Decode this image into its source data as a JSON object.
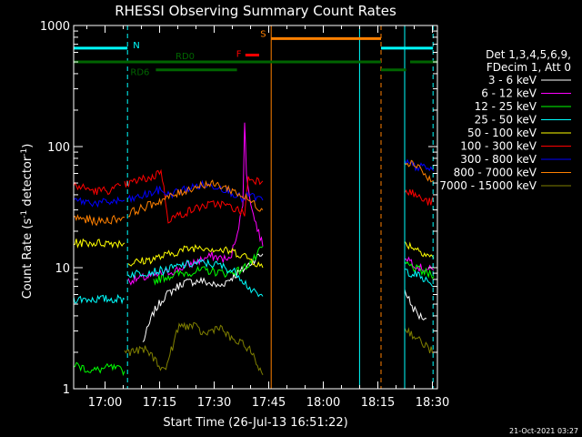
{
  "chart_data": {
    "type": "line",
    "title": "RHESSI Observing Summary Count Rates",
    "xlabel": "Start Time (26-Jul-13 16:51:22)",
    "ylabel_main": "Count Rate (s",
    "ylabel_sup1": "-1",
    "ylabel_mid": " detector",
    "ylabel_sup2": "-1",
    "ylabel_end": ")",
    "x_unit": "minutes after 16:51:22",
    "xlim": [
      0,
      100
    ],
    "ylim": [
      1,
      1000
    ],
    "yscale": "log",
    "x_ticks": [
      {
        "v": 8.63,
        "label": "17:00"
      },
      {
        "v": 23.63,
        "label": "17:15"
      },
      {
        "v": 38.63,
        "label": "17:30"
      },
      {
        "v": 53.63,
        "label": "17:45"
      },
      {
        "v": 68.63,
        "label": "18:00"
      },
      {
        "v": 83.63,
        "label": "18:15"
      },
      {
        "v": 98.63,
        "label": "18:30"
      }
    ],
    "y_ticks": [
      {
        "v": 1,
        "label": "1"
      },
      {
        "v": 10,
        "label": "10"
      },
      {
        "v": 100,
        "label": "100"
      },
      {
        "v": 1000,
        "label": "1000"
      }
    ],
    "legend": {
      "header1": "Det 1,3,4,5,6,9,",
      "header2": "FDecim 1, Att 0",
      "placement": "right",
      "entries": [
        {
          "label": "3 - 6 keV",
          "color": "#ffffff"
        },
        {
          "label": "6 - 12 keV",
          "color": "#ff00ff"
        },
        {
          "label": "12 - 25 keV",
          "color": "#00ff00"
        },
        {
          "label": "25 - 50 keV",
          "color": "#00ffff"
        },
        {
          "label": "50 - 100 keV",
          "color": "#ffff00"
        },
        {
          "label": "100 - 300 keV",
          "color": "#ff0000"
        },
        {
          "label": "300 - 800 keV",
          "color": "#0000ff"
        },
        {
          "label": "800 - 7000 keV",
          "color": "#ff8000"
        },
        {
          "label": "7000 - 15000 keV",
          "color": "#808000"
        }
      ]
    },
    "series": [
      {
        "name": "3 - 6 keV",
        "color": "#ffffff",
        "segments": [
          [
            [
              19,
              2.4
            ],
            [
              22,
              4.3
            ],
            [
              25,
              5.8
            ],
            [
              30,
              7.5
            ],
            [
              35,
              7.8
            ],
            [
              40,
              7.0
            ],
            [
              44,
              8.5
            ],
            [
              47,
              9.8
            ],
            [
              50,
              12.0
            ],
            [
              52,
              13.0
            ]
          ],
          [
            [
              91,
              6.6
            ],
            [
              93,
              4.8
            ],
            [
              95,
              4.0
            ],
            [
              97,
              3.8
            ]
          ]
        ]
      },
      {
        "name": "6 - 12 keV",
        "color": "#ff00ff",
        "segments": [
          [
            [
              15,
              7.8
            ],
            [
              19,
              8.2
            ],
            [
              23,
              8.7
            ],
            [
              28,
              9.5
            ],
            [
              33,
              11.0
            ],
            [
              38,
              12.5
            ],
            [
              43,
              11.5
            ],
            [
              45,
              20
            ],
            [
              46.5,
              32
            ],
            [
              47,
              160
            ],
            [
              47.5,
              60
            ],
            [
              49,
              30
            ],
            [
              52,
              15
            ]
          ],
          [
            [
              91,
              12.5
            ],
            [
              95,
              10.0
            ],
            [
              99,
              9.5
            ]
          ]
        ]
      },
      {
        "name": "12 - 25 keV",
        "color": "#00ff00",
        "segments": [
          [
            [
              0,
              1.6
            ],
            [
              5,
              1.4
            ],
            [
              10,
              1.5
            ],
            [
              14,
              1.4
            ]
          ],
          [
            [
              22,
              7.8
            ],
            [
              26,
              8.5
            ],
            [
              30,
              9.0
            ],
            [
              36,
              9.5
            ],
            [
              42,
              9.0
            ],
            [
              46,
              9.5
            ],
            [
              50,
              12.0
            ],
            [
              52,
              15.0
            ]
          ],
          [
            [
              91,
              10.8
            ],
            [
              95,
              9.5
            ],
            [
              99,
              8.5
            ]
          ]
        ]
      },
      {
        "name": "25 - 50 keV",
        "color": "#00ffff",
        "segments": [
          [
            [
              0,
              5.5
            ],
            [
              7,
              5.5
            ],
            [
              14,
              5.5
            ]
          ],
          [
            [
              15,
              8.8
            ],
            [
              20,
              9.2
            ],
            [
              25,
              9.5
            ],
            [
              30,
              10.5
            ],
            [
              35,
              11.0
            ],
            [
              40,
              10.5
            ],
            [
              45,
              9.0
            ],
            [
              48,
              7.0
            ],
            [
              50,
              6.0
            ],
            [
              52,
              5.8
            ]
          ],
          [
            [
              91,
              9.5
            ],
            [
              95,
              8.5
            ],
            [
              99,
              7.0
            ]
          ]
        ]
      },
      {
        "name": "50 - 100 keV",
        "color": "#ffff00",
        "segments": [
          [
            [
              0,
              16
            ],
            [
              7,
              16
            ],
            [
              14,
              16
            ]
          ],
          [
            [
              15,
              10.8
            ],
            [
              20,
              11.5
            ],
            [
              25,
              12.5
            ],
            [
              30,
              14.0
            ],
            [
              35,
              15.0
            ],
            [
              40,
              14.0
            ],
            [
              44,
              13.5
            ],
            [
              47,
              12.5
            ],
            [
              50,
              11.0
            ],
            [
              52,
              10.0
            ]
          ],
          [
            [
              91,
              16
            ],
            [
              95,
              14
            ],
            [
              99,
              12
            ]
          ]
        ]
      },
      {
        "name": "100 - 300 keV",
        "color": "#ff0000",
        "segments": [
          [
            [
              0,
              48
            ],
            [
              6,
              43
            ],
            [
              11,
              44
            ],
            [
              13,
              48
            ]
          ],
          [
            [
              14,
              48
            ],
            [
              18,
              53
            ],
            [
              22,
              56
            ],
            [
              24,
              65
            ],
            [
              26,
              25
            ],
            [
              30,
              28
            ],
            [
              35,
              32
            ],
            [
              40,
              34
            ],
            [
              44,
              31
            ],
            [
              47,
              28
            ],
            [
              48,
              55
            ],
            [
              50,
              53
            ],
            [
              52,
              52
            ]
          ],
          [
            [
              91,
              45
            ],
            [
              95,
              38
            ],
            [
              97,
              35
            ],
            [
              99,
              35
            ]
          ]
        ]
      },
      {
        "name": "300 - 800 keV",
        "color": "#0000ff",
        "segments": [
          [
            [
              0,
              36
            ],
            [
              7,
              34
            ],
            [
              14,
              36
            ]
          ],
          [
            [
              15,
              36
            ],
            [
              20,
              40
            ],
            [
              24,
              44
            ],
            [
              26,
              40
            ],
            [
              30,
              44
            ],
            [
              35,
              48
            ],
            [
              40,
              47
            ],
            [
              44,
              41
            ],
            [
              47,
              36
            ],
            [
              48,
              40
            ],
            [
              50,
              38
            ],
            [
              52,
              36
            ]
          ],
          [
            [
              91,
              74
            ],
            [
              94,
              68
            ],
            [
              97,
              67
            ],
            [
              99,
              63
            ]
          ]
        ]
      },
      {
        "name": "800 - 7000 keV",
        "color": "#ff8000",
        "segments": [
          [
            [
              0,
              26
            ],
            [
              7,
              24
            ],
            [
              14,
              26
            ]
          ],
          [
            [
              15,
              28
            ],
            [
              20,
              32
            ],
            [
              24,
              36
            ],
            [
              28,
              40
            ],
            [
              32,
              45
            ],
            [
              36,
              49
            ],
            [
              40,
              48
            ],
            [
              44,
              43
            ],
            [
              47,
              38
            ],
            [
              50,
              33
            ],
            [
              52,
              30
            ]
          ],
          [
            [
              91,
              76
            ],
            [
              95,
              70
            ],
            [
              97,
              55
            ],
            [
              99,
              52
            ]
          ]
        ]
      },
      {
        "name": "7000 - 15000 keV",
        "color": "#808000",
        "segments": [
          [
            [
              14,
              2.0
            ],
            [
              20,
              2.1
            ],
            [
              25,
              1.4
            ],
            [
              29,
              3.3
            ],
            [
              33,
              3.3
            ],
            [
              36,
              2.8
            ],
            [
              40,
              3.3
            ],
            [
              43,
              2.6
            ],
            [
              48,
              2.2
            ],
            [
              52,
              1.3
            ]
          ],
          [
            [
              91,
              3.2
            ],
            [
              95,
              2.5
            ],
            [
              99,
              2.0
            ]
          ]
        ]
      }
    ],
    "vlines": [
      {
        "x": 14.8,
        "color": "#00ffff",
        "style": "dashed"
      },
      {
        "x": 54.3,
        "color": "#ff8000",
        "style": "solid"
      },
      {
        "x": 78.6,
        "color": "#00ffff",
        "style": "solid"
      },
      {
        "x": 84.5,
        "color": "#ff8000",
        "style": "dashed"
      },
      {
        "x": 91.0,
        "color": "#00ffff",
        "style": "solid"
      },
      {
        "x": 98.8,
        "color": "#00ffff",
        "style": "dashed"
      }
    ],
    "flag_bars": [
      {
        "label": "N",
        "color": "#00ffff",
        "y": 650,
        "x0": 0,
        "x1": 14.8
      },
      {
        "label": "",
        "color": "#00ffff",
        "y": 650,
        "x0": 84.5,
        "x1": 98.8
      },
      {
        "label": "S",
        "color": "#ff8000",
        "y": 780,
        "x0": 54.3,
        "x1": 84.5
      },
      {
        "label": "F",
        "color": "#ff0000",
        "y": 570,
        "x0": 47.2,
        "x1": 51.0
      },
      {
        "label": "RD0",
        "color": "#006400",
        "y": 500,
        "x0": 0,
        "x1": 84.5
      },
      {
        "label": "",
        "color": "#006400",
        "y": 500,
        "x0": 92.5,
        "x1": 100
      },
      {
        "label": "RD6",
        "color": "#006400",
        "y": 430,
        "x0": 22.6,
        "x1": 44.9
      },
      {
        "label": "",
        "color": "#006400",
        "y": 430,
        "x0": 84.5,
        "x1": 91.4
      }
    ],
    "ticks_minor": true,
    "grid": false
  },
  "footer": {
    "timestamp": "21-Oct-2021 03:27"
  },
  "colors": {
    "background": "#000000",
    "axes": "#ffffff"
  }
}
